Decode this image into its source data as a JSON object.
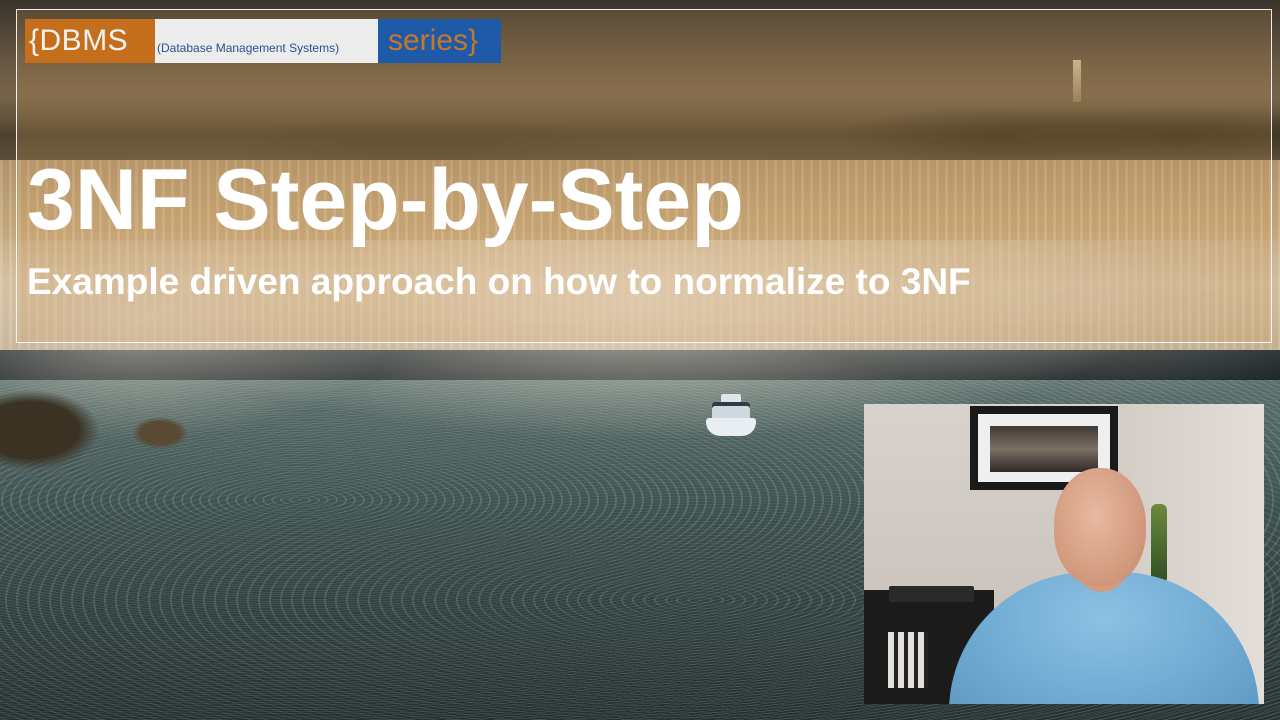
{
  "badge": {
    "dbms_label": "{DBMS",
    "full_name": "(Database Management Systems)",
    "series_label": "series}",
    "colors": {
      "dbms_bg": "#c56f1c",
      "full_name_bg": "#ececec",
      "series_bg": "#1e5aa7"
    }
  },
  "title": {
    "main": "3NF Step-by-Step",
    "subtitle": "Example driven approach on how to normalize to 3NF"
  },
  "scene": {
    "background_description_icon": "waterfall-photo",
    "inset_icon": "webcam-presenter"
  }
}
